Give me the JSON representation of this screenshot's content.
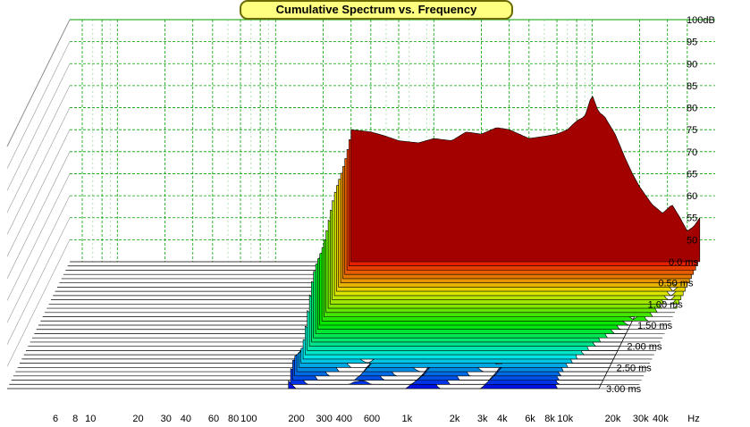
{
  "chart_data": {
    "type": "area",
    "title": "Cumulative Spectrum vs. Frequency",
    "x_axis": {
      "scale": "log",
      "unit": "Hz",
      "tick_labels": [
        "6",
        "8",
        "10",
        "20",
        "30",
        "40",
        "60",
        "80",
        "100",
        "200",
        "300",
        "400",
        "600",
        "1k",
        "2k",
        "3k",
        "4k",
        "6k",
        "8k",
        "10k",
        "20k",
        "30k",
        "40k"
      ],
      "tick_values": [
        6,
        8,
        10,
        20,
        30,
        40,
        60,
        80,
        100,
        200,
        300,
        400,
        600,
        1000,
        2000,
        3000,
        4000,
        6000,
        8000,
        10000,
        20000,
        30000,
        40000
      ],
      "range": [
        5,
        60000
      ]
    },
    "y_axis": {
      "unit": "dB",
      "tick_labels": [
        "100dB",
        "95",
        "90",
        "85",
        "80",
        "75",
        "70",
        "65",
        "60",
        "55",
        "50"
      ],
      "tick_values": [
        100,
        95,
        90,
        85,
        80,
        75,
        70,
        65,
        60,
        55,
        50
      ],
      "range": [
        45,
        100
      ]
    },
    "z_axis": {
      "unit": "ms",
      "tick_labels": [
        "0.0 ms",
        "0.50 ms",
        "1.00 ms",
        "1.50 ms",
        "2.00 ms",
        "2.50 ms",
        "3.00 ms"
      ],
      "tick_values": [
        0,
        0.5,
        1.0,
        1.5,
        2.0,
        2.5,
        3.0
      ],
      "range": [
        0,
        3.0
      ]
    },
    "grid": true,
    "initial_response": {
      "name": "0.0 ms",
      "x": [
        300,
        400,
        500,
        600,
        800,
        1000,
        1300,
        1600,
        2000,
        2500,
        3000,
        4000,
        5000,
        6000,
        7000,
        8000,
        9000,
        10000,
        11000,
        12000,
        14000,
        16000,
        18000,
        20000,
        24000,
        28000,
        32000,
        36000,
        40000,
        44000,
        48000
      ],
      "y": [
        75,
        74.5,
        73.5,
        72.5,
        72,
        73,
        72.5,
        74.5,
        74,
        75.5,
        75,
        73,
        73.5,
        74,
        75,
        77,
        78,
        83,
        79,
        78,
        74,
        69,
        65,
        62,
        58,
        56,
        58,
        55,
        52,
        53,
        55
      ]
    },
    "decay_per_slice_db": [
      0,
      1.2,
      2.3,
      3.3,
      4.2,
      5.1,
      5.9,
      6.7,
      7.4,
      8.1,
      8.8,
      9.5,
      10.3,
      11.2,
      12.2,
      13.3,
      14.5,
      15.7,
      16.9,
      18.1,
      19.3,
      20.5,
      21.7,
      22.9,
      24.0,
      25.1,
      26.2,
      27.3,
      28.3,
      29.3,
      30.2
    ]
  }
}
